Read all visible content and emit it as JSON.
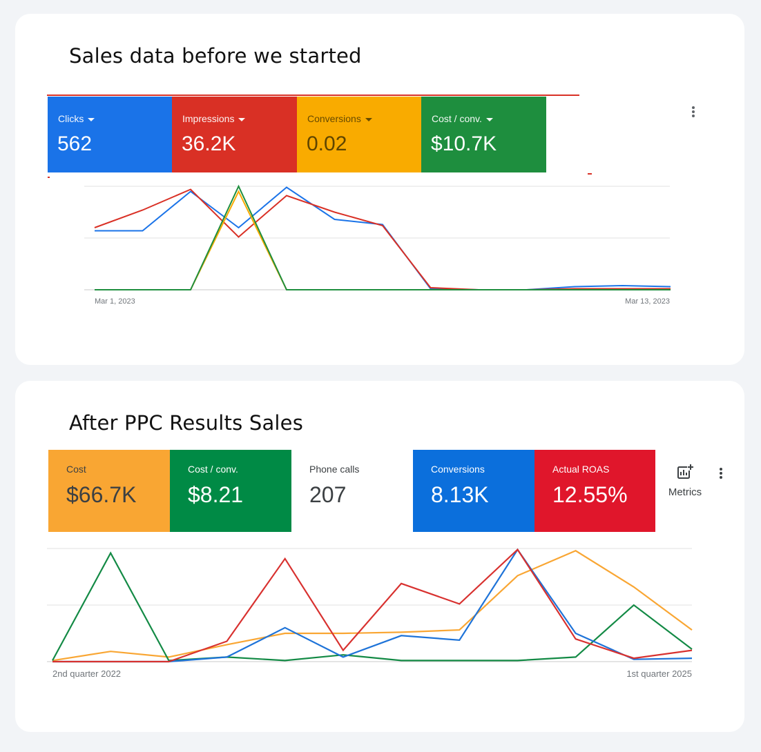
{
  "card1": {
    "title": "Sales data before we started",
    "tiles": [
      {
        "label": "Clicks",
        "value": "562",
        "color": "#1a73e8"
      },
      {
        "label": "Impressions",
        "value": "36.2K",
        "color": "#d93025"
      },
      {
        "label": "Conversions",
        "value": "0.02",
        "color": "#f9ab00"
      },
      {
        "label": "Cost / conv.",
        "value": "$10.7K",
        "color": "#1e8e3e"
      }
    ]
  },
  "card2": {
    "title": "After PPC Results Sales",
    "tiles": [
      {
        "label": "Cost",
        "value": "$66.7K",
        "color": "#f9a633",
        "text_color": "#3c4043"
      },
      {
        "label": "Cost / conv.",
        "value": "$8.21",
        "color": "#008a45",
        "text_color": "#ffffff"
      },
      {
        "label": "Phone calls",
        "value": "207",
        "color": "#ffffff",
        "text_color": "#3c4043"
      },
      {
        "label": "Conversions",
        "value": "8.13K",
        "color": "#0b6fdc",
        "text_color": "#ffffff"
      },
      {
        "label": "Actual ROAS",
        "value": "12.55%",
        "color": "#e0162b",
        "text_color": "#ffffff"
      }
    ],
    "metrics_label": "Metrics"
  },
  "chart_data": [
    {
      "type": "line",
      "x_start_label": "Mar 1, 2023",
      "x_end_label": "Mar 13, 2023",
      "ylim": [
        0,
        1
      ],
      "grid": true,
      "x": [
        0,
        1,
        2,
        3,
        4,
        5,
        6,
        7,
        8,
        9,
        10,
        11,
        12
      ],
      "series": [
        {
          "color": "#1a73e8",
          "values": [
            0.57,
            0.57,
            0.95,
            0.6,
            0.99,
            0.68,
            0.63,
            0.01,
            0,
            0,
            0.03,
            0.04,
            0.03
          ]
        },
        {
          "color": "#d93025",
          "values": [
            0.6,
            0.77,
            0.97,
            0.51,
            0.91,
            0.75,
            0.62,
            0.02,
            0,
            0,
            0.01,
            0.01,
            0.01
          ]
        },
        {
          "color": "#f9ab00",
          "values": [
            0,
            0,
            0,
            0.95,
            0,
            0,
            0,
            0,
            0,
            0,
            0,
            0,
            0
          ]
        },
        {
          "color": "#1e8e3e",
          "values": [
            0,
            0,
            0,
            1.0,
            0,
            0,
            0,
            0,
            0,
            0,
            0,
            0,
            0
          ]
        }
      ]
    },
    {
      "type": "line",
      "x_start_label": "2nd quarter 2022",
      "x_end_label": "1st quarter 2025",
      "ylim": [
        0,
        1
      ],
      "grid": true,
      "x": [
        0,
        1,
        2,
        3,
        4,
        5,
        6,
        7,
        8,
        9,
        10,
        11
      ],
      "series": [
        {
          "name": "Cost",
          "color": "#f9a633",
          "values": [
            0.01,
            0.09,
            0.04,
            0.15,
            0.25,
            0.25,
            0.26,
            0.28,
            0.76,
            0.98,
            0.66,
            0.28
          ]
        },
        {
          "name": "Cost / conv.",
          "color": "#138a45",
          "values": [
            0.01,
            0.96,
            0.01,
            0.04,
            0.01,
            0.06,
            0.01,
            0.01,
            0.01,
            0.04,
            0.5,
            0.11
          ]
        },
        {
          "name": "Conversions",
          "color": "#1e73d8",
          "values": [
            0,
            0,
            0,
            0.04,
            0.3,
            0.04,
            0.23,
            0.19,
            0.99,
            0.25,
            0.02,
            0.03
          ]
        },
        {
          "name": "Actual ROAS",
          "color": "#d8312f",
          "values": [
            0,
            0,
            0,
            0.18,
            0.91,
            0.1,
            0.69,
            0.51,
            0.99,
            0.2,
            0.03,
            0.1
          ]
        }
      ]
    }
  ]
}
